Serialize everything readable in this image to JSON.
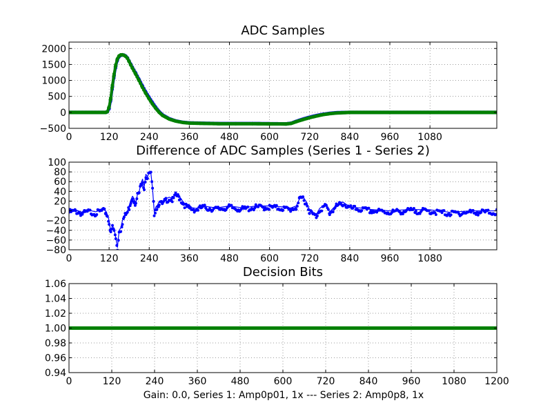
{
  "figure": {
    "xlabel": "Gain: 0.0, Series 1: Amp0p01, 1x --- Series 2: Amp0p8, 1x"
  },
  "colors": {
    "series1": "#0000ff",
    "series2": "#008000",
    "diff": "#0000ff",
    "bits": "#008000"
  },
  "chart_data": [
    {
      "type": "line",
      "title": "ADC Samples",
      "xlim": [
        0,
        1280
      ],
      "ylim": [
        -500,
        2200
      ],
      "xticks": [
        0,
        120,
        240,
        360,
        480,
        600,
        720,
        840,
        960,
        1080
      ],
      "yticks": [
        -500,
        0,
        500,
        1000,
        1500,
        2000
      ],
      "grid": true,
      "series": [
        {
          "x": [
            0,
            110,
            115,
            120,
            125,
            130,
            135,
            140,
            145,
            150,
            155,
            160,
            165,
            170,
            175,
            180,
            185,
            190,
            200,
            210,
            220,
            230,
            240,
            250,
            260,
            270,
            280,
            300,
            320,
            340,
            360,
            400,
            450,
            500,
            550,
            600,
            650,
            665,
            680,
            700,
            720,
            740,
            760,
            780,
            800,
            820,
            840,
            900,
            1000,
            1100,
            1200,
            1280
          ],
          "y": [
            0,
            0,
            20,
            120,
            400,
            800,
            1150,
            1450,
            1650,
            1750,
            1790,
            1800,
            1790,
            1760,
            1700,
            1600,
            1500,
            1400,
            1220,
            1020,
            820,
            630,
            460,
            300,
            150,
            20,
            -80,
            -200,
            -270,
            -310,
            -330,
            -340,
            -350,
            -350,
            -350,
            -355,
            -360,
            -340,
            -280,
            -210,
            -150,
            -100,
            -60,
            -30,
            -10,
            -5,
            0,
            0,
            0,
            0,
            0,
            0
          ]
        },
        {
          "x": [
            0,
            110,
            115,
            120,
            125,
            130,
            135,
            140,
            145,
            150,
            155,
            160,
            165,
            170,
            175,
            180,
            185,
            190,
            200,
            210,
            220,
            230,
            240,
            250,
            260,
            270,
            280,
            300,
            320,
            340,
            360,
            400,
            450,
            500,
            550,
            600,
            650,
            665,
            680,
            700,
            720,
            740,
            760,
            780,
            800,
            820,
            840,
            900,
            1000,
            1100,
            1200,
            1280
          ],
          "y": [
            0,
            0,
            25,
            170,
            450,
            850,
            1200,
            1490,
            1680,
            1770,
            1800,
            1800,
            1785,
            1750,
            1690,
            1590,
            1480,
            1380,
            1190,
            990,
            780,
            590,
            420,
            260,
            120,
            0,
            -95,
            -210,
            -275,
            -315,
            -335,
            -345,
            -355,
            -355,
            -355,
            -360,
            -362,
            -345,
            -290,
            -225,
            -165,
            -115,
            -70,
            -40,
            -20,
            -10,
            0,
            0,
            0,
            0,
            0,
            0
          ]
        }
      ]
    },
    {
      "type": "line",
      "title": "Difference of ADC Samples (Series 1 - Series 2)",
      "xlim": [
        0,
        1280
      ],
      "ylim": [
        -80,
        100
      ],
      "xticks": [
        0,
        120,
        240,
        360,
        480,
        600,
        720,
        840,
        960,
        1080
      ],
      "yticks": [
        -80,
        -60,
        -40,
        -20,
        0,
        20,
        40,
        60,
        80,
        100
      ],
      "grid": true,
      "series": [
        {
          "x": [
            0,
            20,
            40,
            60,
            80,
            100,
            110,
            115,
            120,
            125,
            130,
            135,
            140,
            145,
            150,
            155,
            160,
            165,
            170,
            175,
            180,
            185,
            190,
            195,
            200,
            205,
            210,
            215,
            220,
            225,
            230,
            235,
            240,
            245,
            250,
            255,
            260,
            265,
            270,
            280,
            290,
            300,
            310,
            320,
            330,
            340,
            350,
            360,
            380,
            400,
            440,
            480,
            520,
            560,
            600,
            640,
            660,
            680,
            690,
            700,
            710,
            720,
            730,
            740,
            750,
            760,
            770,
            780,
            790,
            800,
            810,
            820,
            840,
            870,
            900,
            960,
            1020,
            1080,
            1140,
            1200,
            1280
          ],
          "y": [
            0,
            2,
            -3,
            1,
            -2,
            3,
            0,
            -8,
            -20,
            -45,
            -30,
            -38,
            -55,
            -75,
            -40,
            -35,
            -20,
            -10,
            -5,
            0,
            10,
            22,
            30,
            25,
            15,
            35,
            40,
            55,
            65,
            50,
            75,
            70,
            80,
            78,
            45,
            -2,
            8,
            12,
            20,
            15,
            25,
            28,
            25,
            35,
            30,
            20,
            12,
            8,
            5,
            10,
            6,
            10,
            6,
            10,
            10,
            8,
            5,
            10,
            25,
            30,
            18,
            2,
            -5,
            -8,
            5,
            10,
            12,
            -2,
            5,
            12,
            15,
            18,
            8,
            6,
            3,
            0,
            3,
            2,
            -3,
            0,
            0
          ]
        }
      ]
    },
    {
      "type": "line",
      "title": "Decision Bits",
      "xlim": [
        0,
        1200
      ],
      "ylim": [
        0.94,
        1.06
      ],
      "xticks": [
        0,
        120,
        240,
        360,
        480,
        600,
        720,
        840,
        960,
        1080,
        1200
      ],
      "yticks": [
        0.94,
        0.96,
        0.98,
        1.0,
        1.02,
        1.04,
        1.06
      ],
      "grid": true,
      "series": [
        {
          "x": [
            0,
            1200
          ],
          "y": [
            1.0,
            1.0
          ]
        }
      ]
    }
  ]
}
